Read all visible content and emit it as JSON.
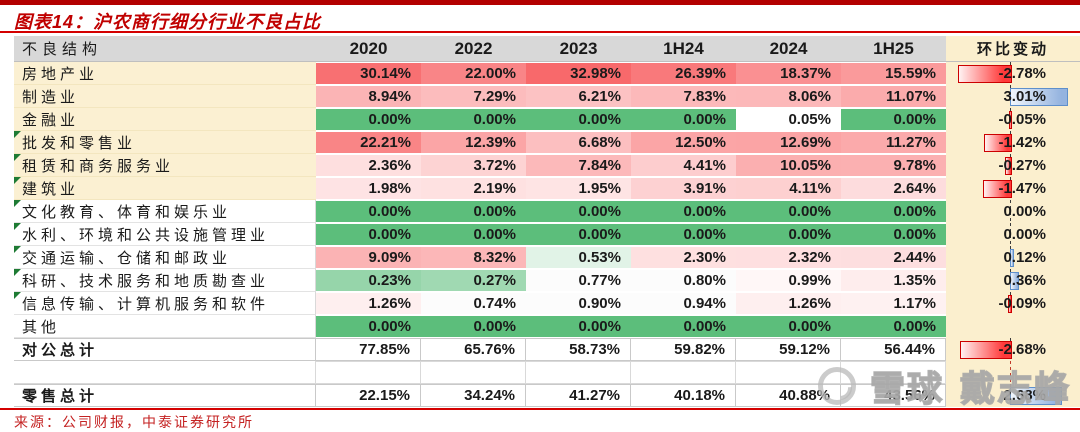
{
  "chart_data": {
    "type": "table",
    "title": "图表14：沪农商行细分行业不良占比",
    "row_header": "不良结构",
    "columns": [
      "2020",
      "2022",
      "2023",
      "1H24",
      "2024",
      "1H25"
    ],
    "change_column": "环比变动",
    "rows": [
      {
        "label": "房地产业",
        "values": [
          "30.14%",
          "22.00%",
          "32.98%",
          "26.39%",
          "18.37%",
          "15.59%"
        ],
        "change": "-2.78%",
        "has_note": false
      },
      {
        "label": "制造业",
        "values": [
          "8.94%",
          "7.29%",
          "6.21%",
          "7.83%",
          "8.06%",
          "11.07%"
        ],
        "change": "3.01%",
        "has_note": false
      },
      {
        "label": "金融业",
        "values": [
          "0.00%",
          "0.00%",
          "0.00%",
          "0.00%",
          "0.05%",
          "0.00%"
        ],
        "change": "-0.05%",
        "has_note": false
      },
      {
        "label": "批发和零售业",
        "values": [
          "22.21%",
          "12.39%",
          "6.68%",
          "12.50%",
          "12.69%",
          "11.27%"
        ],
        "change": "-1.42%",
        "has_note": true
      },
      {
        "label": "租赁和商务服务业",
        "values": [
          "2.36%",
          "3.72%",
          "7.84%",
          "4.41%",
          "10.05%",
          "9.78%"
        ],
        "change": "-0.27%",
        "has_note": true
      },
      {
        "label": "建筑业",
        "values": [
          "1.98%",
          "2.19%",
          "1.95%",
          "3.91%",
          "4.11%",
          "2.64%"
        ],
        "change": "-1.47%",
        "has_note": true
      },
      {
        "label": "文化教育、体育和娱乐业",
        "values": [
          "0.00%",
          "0.00%",
          "0.00%",
          "0.00%",
          "0.00%",
          "0.00%"
        ],
        "change": "0.00%",
        "has_note": true
      },
      {
        "label": "水利、环境和公共设施管理业",
        "values": [
          "0.00%",
          "0.00%",
          "0.00%",
          "0.00%",
          "0.00%",
          "0.00%"
        ],
        "change": "0.00%",
        "has_note": true
      },
      {
        "label": "交通运输、仓储和邮政业",
        "values": [
          "9.09%",
          "8.32%",
          "0.53%",
          "2.30%",
          "2.32%",
          "2.44%"
        ],
        "change": "0.12%",
        "has_note": true
      },
      {
        "label": "科研、技术服务和地质勘查业",
        "values": [
          "0.23%",
          "0.27%",
          "0.77%",
          "0.80%",
          "0.99%",
          "1.35%"
        ],
        "change": "0.36%",
        "has_note": true
      },
      {
        "label": "信息传输、计算机服务和软件",
        "values": [
          "1.26%",
          "0.74%",
          "0.90%",
          "0.94%",
          "1.26%",
          "1.17%"
        ],
        "change": "-0.09%",
        "has_note": true
      },
      {
        "label": "其他",
        "values": [
          "0.00%",
          "0.00%",
          "0.00%",
          "0.00%",
          "0.00%",
          "0.00%"
        ],
        "change": "",
        "has_note": false
      }
    ],
    "totals": [
      {
        "label": "对公总计",
        "values": [
          "77.85%",
          "65.76%",
          "58.73%",
          "59.82%",
          "59.12%",
          "56.44%"
        ],
        "change": "-2.68%"
      },
      {
        "label": "零售总计",
        "values": [
          "22.15%",
          "34.24%",
          "41.27%",
          "40.18%",
          "40.88%",
          "43.56%"
        ],
        "change": "2.68%"
      }
    ],
    "source": "来源：公司财报，中泰证券研究所",
    "legend_note": "heatmap: green = 0%, white = low, red = high; change column data bars scaled to ±3.01%"
  },
  "watermark": {
    "logo": "xueqiu-circle-logo",
    "text_1": "雪球",
    "text_2": "戴志峰"
  },
  "colors": {
    "accent_red": "#c00000",
    "header_gray": "#d8d8d8",
    "band_beige": "#fbefce",
    "heat_green": "#5cbe7b",
    "heat_red": "#f8696b",
    "bar_negative": "#ff3a3a",
    "bar_positive": "#94b3df",
    "note_marker_green": "#1e7b34"
  }
}
